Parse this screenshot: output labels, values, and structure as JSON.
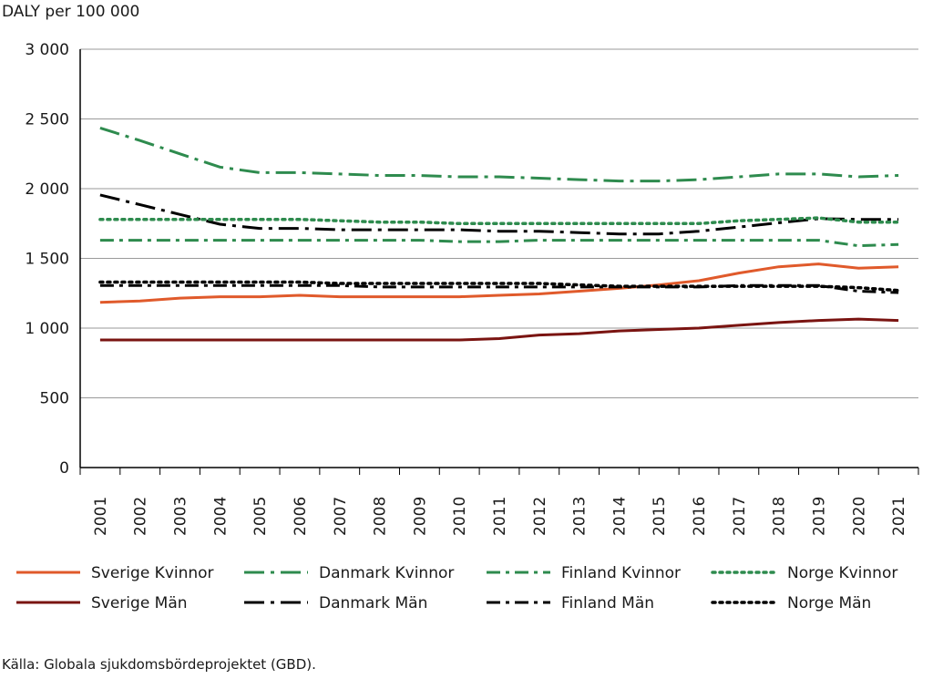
{
  "chart_data": {
    "type": "line",
    "ylabel": "DALY per 100 000",
    "ylim": [
      0,
      3000
    ],
    "yticks": [
      0,
      500,
      1000,
      1500,
      2000,
      2500,
      3000
    ],
    "ytick_labels": [
      "0",
      "500",
      "1 000",
      "1 500",
      "2 000",
      "2 500",
      "3 000"
    ],
    "categories": [
      "2001",
      "2002",
      "2003",
      "2004",
      "2005",
      "2006",
      "2007",
      "2008",
      "2009",
      "2010",
      "2011",
      "2012",
      "2013",
      "2014",
      "2015",
      "2016",
      "2017",
      "2018",
      "2019",
      "2020",
      "2021"
    ],
    "grid": "horizontal",
    "legend_position": "bottom",
    "series": [
      {
        "name": "Sverige Kvinnor",
        "color": "#e05a2b",
        "dash": "solid",
        "values": [
          1185,
          1195,
          1215,
          1225,
          1225,
          1235,
          1225,
          1225,
          1225,
          1225,
          1235,
          1245,
          1265,
          1285,
          1310,
          1340,
          1395,
          1440,
          1460,
          1430,
          1440
        ]
      },
      {
        "name": "Sverige Män",
        "color": "#7a1411",
        "dash": "solid",
        "values": [
          915,
          915,
          915,
          915,
          915,
          915,
          915,
          915,
          915,
          915,
          925,
          950,
          960,
          980,
          990,
          1000,
          1020,
          1040,
          1055,
          1065,
          1055
        ]
      },
      {
        "name": "Danmark Kvinnor",
        "color": "#2e8b4e",
        "dash": "dashdot-long",
        "values": [
          2435,
          2345,
          2250,
          2155,
          2115,
          2115,
          2105,
          2095,
          2095,
          2085,
          2085,
          2075,
          2065,
          2055,
          2055,
          2065,
          2085,
          2105,
          2105,
          2085,
          2095
        ]
      },
      {
        "name": "Danmark Män",
        "color": "#000000",
        "dash": "dashdot-long",
        "values": [
          1955,
          1885,
          1815,
          1745,
          1715,
          1715,
          1705,
          1705,
          1705,
          1705,
          1695,
          1695,
          1685,
          1675,
          1675,
          1695,
          1725,
          1755,
          1785,
          1780,
          1780
        ]
      },
      {
        "name": "Finland Kvinnor",
        "color": "#2e8b4e",
        "dash": "dashdot",
        "values": [
          1630,
          1630,
          1630,
          1630,
          1630,
          1630,
          1630,
          1630,
          1630,
          1620,
          1620,
          1630,
          1630,
          1630,
          1630,
          1630,
          1630,
          1630,
          1630,
          1590,
          1600
        ]
      },
      {
        "name": "Finland Män",
        "color": "#000000",
        "dash": "dashdot",
        "values": [
          1305,
          1305,
          1305,
          1305,
          1305,
          1305,
          1305,
          1295,
          1295,
          1295,
          1295,
          1295,
          1295,
          1295,
          1295,
          1295,
          1305,
          1305,
          1305,
          1265,
          1255
        ]
      },
      {
        "name": "Norge Kvinnor",
        "color": "#2e8b4e",
        "dash": "dotted",
        "values": [
          1780,
          1780,
          1780,
          1780,
          1780,
          1780,
          1770,
          1760,
          1760,
          1750,
          1750,
          1750,
          1750,
          1750,
          1750,
          1750,
          1770,
          1780,
          1790,
          1760,
          1760
        ]
      },
      {
        "name": "Norge Män",
        "color": "#000000",
        "dash": "dotted",
        "values": [
          1330,
          1330,
          1330,
          1330,
          1330,
          1330,
          1320,
          1320,
          1320,
          1320,
          1320,
          1320,
          1310,
          1300,
          1300,
          1300,
          1300,
          1300,
          1300,
          1290,
          1270
        ]
      }
    ],
    "legend_order": [
      "Sverige Kvinnor",
      "Danmark Kvinnor",
      "Finland Kvinnor",
      "Norge Kvinnor",
      "Sverige Män",
      "Danmark Män",
      "Finland Män",
      "Norge Män"
    ]
  },
  "source_text": "Källa: Globala sjukdomsbördeprojektet (GBD)."
}
